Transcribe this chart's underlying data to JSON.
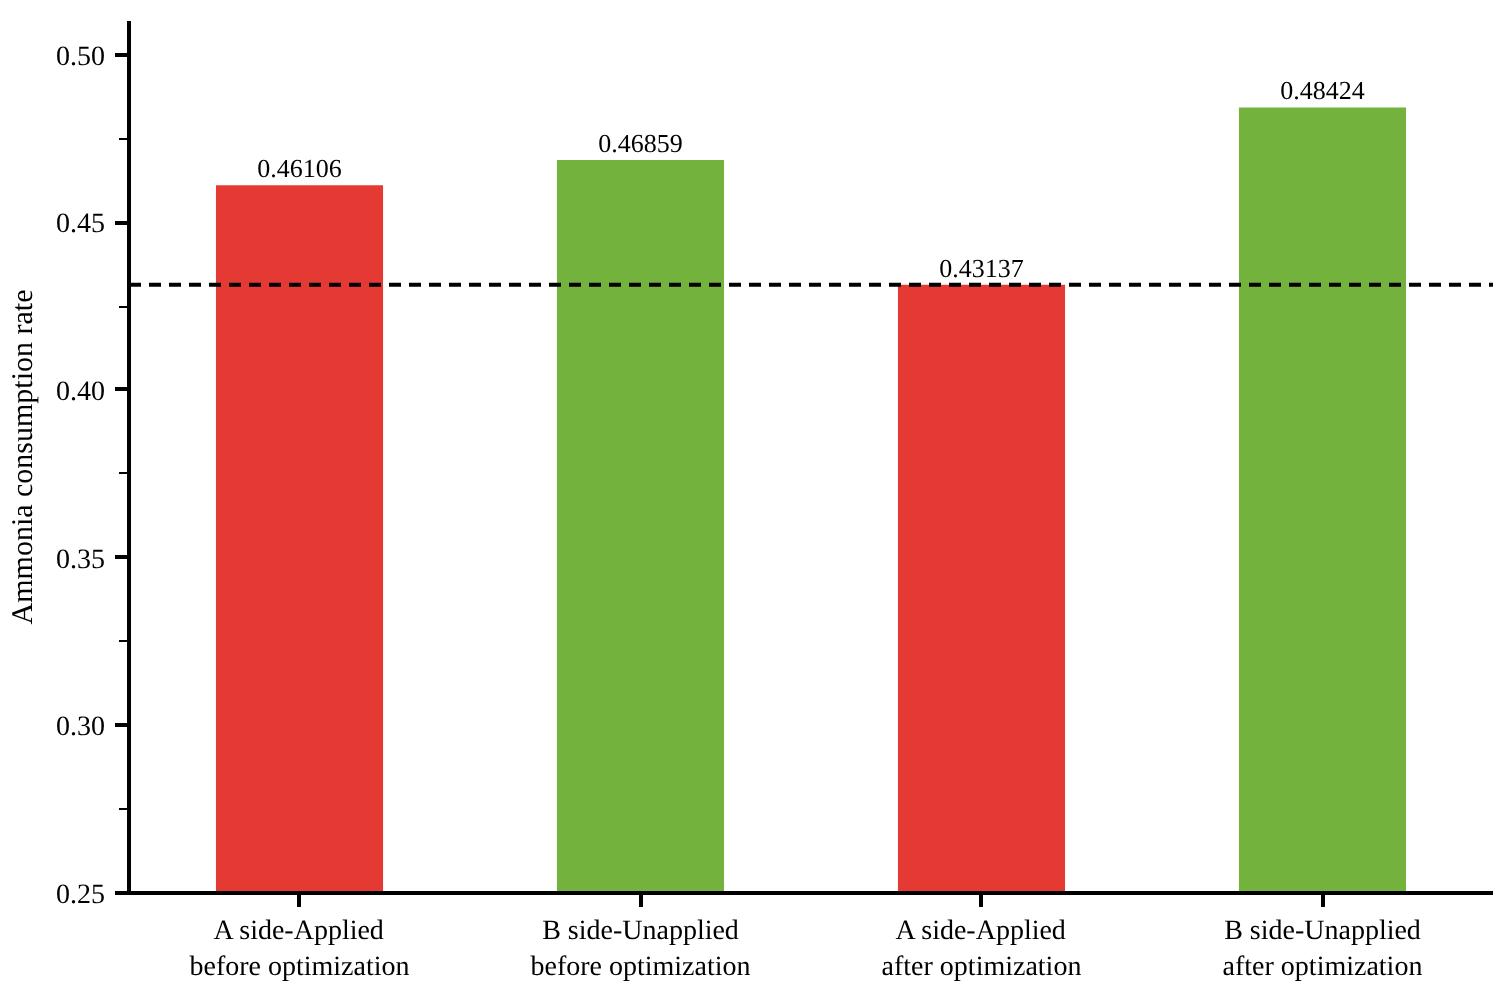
{
  "chart_data": {
    "type": "bar",
    "ylabel": "Ammonia consumption rate",
    "categories": [
      "A side-Applied\nbefore optimization",
      "B side-Unapplied\nbefore optimization",
      "A side-Applied\nafter optimization",
      "B side-Unapplied\nafter optimization"
    ],
    "values": [
      0.46106,
      0.46859,
      0.43137,
      0.48424
    ],
    "colors": [
      "#e53a33",
      "#73b33d",
      "#e53a33",
      "#73b33d"
    ],
    "data_labels": true,
    "ylim": [
      0.25,
      0.51
    ],
    "yticks": [
      {
        "value": 0.25,
        "label": "0.25"
      },
      {
        "value": 0.3,
        "label": "0.30"
      },
      {
        "value": 0.35,
        "label": "0.35"
      },
      {
        "value": 0.4,
        "label": "0.40"
      },
      {
        "value": 0.45,
        "label": "0.45"
      },
      {
        "value": 0.5,
        "label": "0.50"
      }
    ],
    "ref_lines": [
      {
        "axis": "y",
        "value": 0.43137,
        "label": null,
        "color": "#000000",
        "line_style": "dashed"
      }
    ],
    "grid": false
  }
}
